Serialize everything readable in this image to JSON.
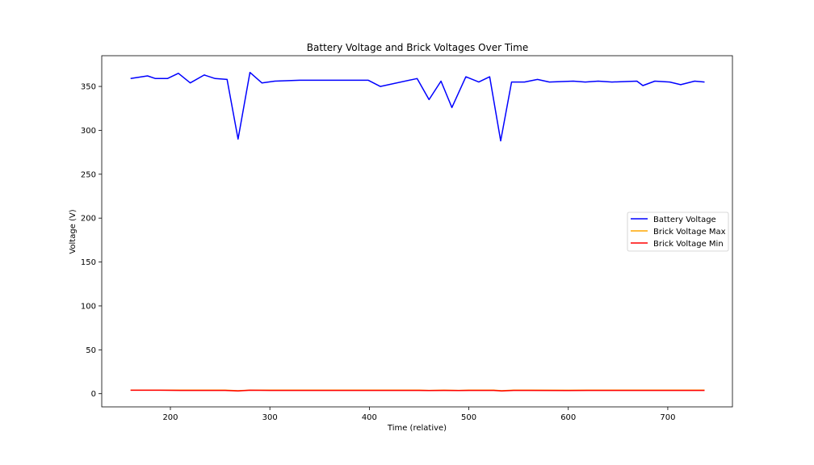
{
  "chart_data": {
    "type": "line",
    "title": "Battery Voltage and Brick Voltages Over Time",
    "xlabel": "Time (relative)",
    "ylabel": "Voltage (V)",
    "xlim": [
      131,
      765
    ],
    "ylim": [
      -15,
      385
    ],
    "xticks": [
      200,
      300,
      400,
      500,
      600,
      700
    ],
    "yticks": [
      0,
      50,
      100,
      150,
      200,
      250,
      300,
      350
    ],
    "grid": false,
    "legend_position": "center-right",
    "series": [
      {
        "name": "Battery Voltage",
        "color": "#0000ff",
        "x": [
          160,
          177,
          185,
          197,
          208,
          220,
          234,
          245,
          257,
          268,
          280,
          292,
          305,
          330,
          353,
          377,
          399,
          411,
          448,
          460,
          472,
          483,
          497,
          510,
          521,
          532,
          543,
          556,
          569,
          581,
          605,
          617,
          630,
          644,
          669,
          675,
          687,
          702,
          713,
          727,
          737
        ],
        "y": [
          359,
          362,
          359,
          359,
          365,
          354,
          363,
          359,
          358,
          290,
          366,
          354,
          356,
          357,
          357,
          357,
          357,
          350,
          359,
          335,
          356,
          326,
          361,
          355,
          361,
          288,
          355,
          355,
          358,
          355,
          356,
          355,
          356,
          355,
          356,
          351,
          356,
          355,
          352,
          356,
          355
        ]
      },
      {
        "name": "Brick Voltage Max",
        "color": "#ffa500",
        "x": [
          160,
          190,
          210,
          255,
          268,
          280,
          300,
          400,
          450,
          460,
          475,
          490,
          500,
          525,
          533,
          545,
          560,
          600,
          620,
          700,
          737
        ],
        "y": [
          4.1,
          4.1,
          4.0,
          4.0,
          3.4,
          4.1,
          4.0,
          4.0,
          4.0,
          3.8,
          4.0,
          3.8,
          4.0,
          4.0,
          3.4,
          4.0,
          4.0,
          3.9,
          4.0,
          4.0,
          4.0
        ]
      },
      {
        "name": "Brick Voltage Min",
        "color": "#ff0000",
        "x": [
          160,
          190,
          210,
          255,
          268,
          280,
          300,
          400,
          450,
          460,
          475,
          490,
          500,
          525,
          533,
          545,
          560,
          600,
          620,
          700,
          737
        ],
        "y": [
          3.9,
          3.9,
          3.8,
          3.8,
          3.2,
          3.9,
          3.8,
          3.8,
          3.8,
          3.6,
          3.8,
          3.6,
          3.8,
          3.8,
          3.2,
          3.8,
          3.8,
          3.7,
          3.8,
          3.8,
          3.8
        ]
      }
    ]
  }
}
